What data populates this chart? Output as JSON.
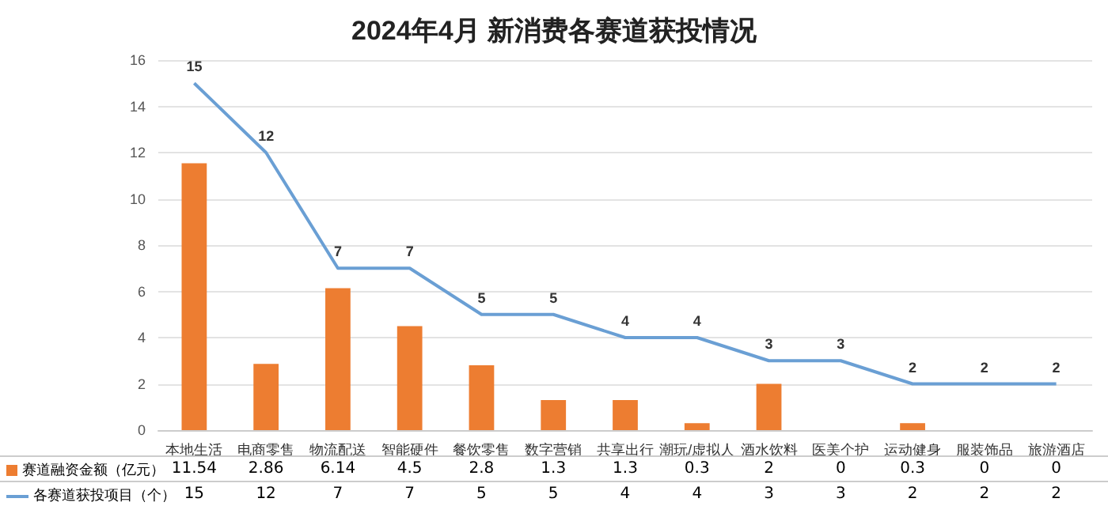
{
  "chart_data": {
    "type": "bar",
    "title": "2024年4月 新消费各赛道获投情况",
    "categories": [
      "本地生活",
      "电商零售",
      "物流配送",
      "智能硬件",
      "餐饮零售",
      "数字营销",
      "共享出行",
      "潮玩/虚拟人",
      "酒水饮料",
      "医美个护",
      "运动健身",
      "服装饰品",
      "旅游酒店"
    ],
    "series": [
      {
        "name": "赛道融资金额（亿元）",
        "color": "#ed7d31",
        "values": [
          11.54,
          2.86,
          6.14,
          4.5,
          2.8,
          1.3,
          1.3,
          0.3,
          2,
          0,
          0.3,
          0,
          0
        ]
      },
      {
        "name": "各赛道获投项目（个）",
        "type": "line",
        "color": "#6a9fd4",
        "values": [
          15,
          12,
          7,
          7,
          5,
          5,
          4,
          4,
          3,
          3,
          2,
          2,
          2
        ]
      }
    ],
    "ylim": [
      0,
      16
    ],
    "yticks": [
      0,
      2,
      4,
      6,
      8,
      10,
      12,
      14,
      16
    ],
    "grid": "y",
    "annotations": [
      {
        "text": "15",
        "x": "本地生活",
        "y": 15
      },
      {
        "text": "12",
        "x": "电商零售",
        "y": 12
      },
      {
        "text": "7",
        "x": "物流配送",
        "y": 7
      },
      {
        "text": "7",
        "x": "智能硬件",
        "y": 7
      },
      {
        "text": "5",
        "x": "餐饮零售",
        "y": 5
      },
      {
        "text": "5",
        "x": "数字营销",
        "y": 5
      },
      {
        "text": "4",
        "x": "共享出行",
        "y": 4
      },
      {
        "text": "4",
        "x": "潮玩/虚拟人",
        "y": 4
      },
      {
        "text": "3",
        "x": "酒水饮料",
        "y": 3
      },
      {
        "text": "3",
        "x": "医美个护",
        "y": 3
      },
      {
        "text": "2",
        "x": "运动健身",
        "y": 2
      },
      {
        "text": "2",
        "x": "服装饰品",
        "y": 2
      },
      {
        "text": "2",
        "x": "旅游酒店",
        "y": 2
      }
    ],
    "legend": "bottom",
    "data_labels": true,
    "marker": "none",
    "line_style": "solid"
  }
}
